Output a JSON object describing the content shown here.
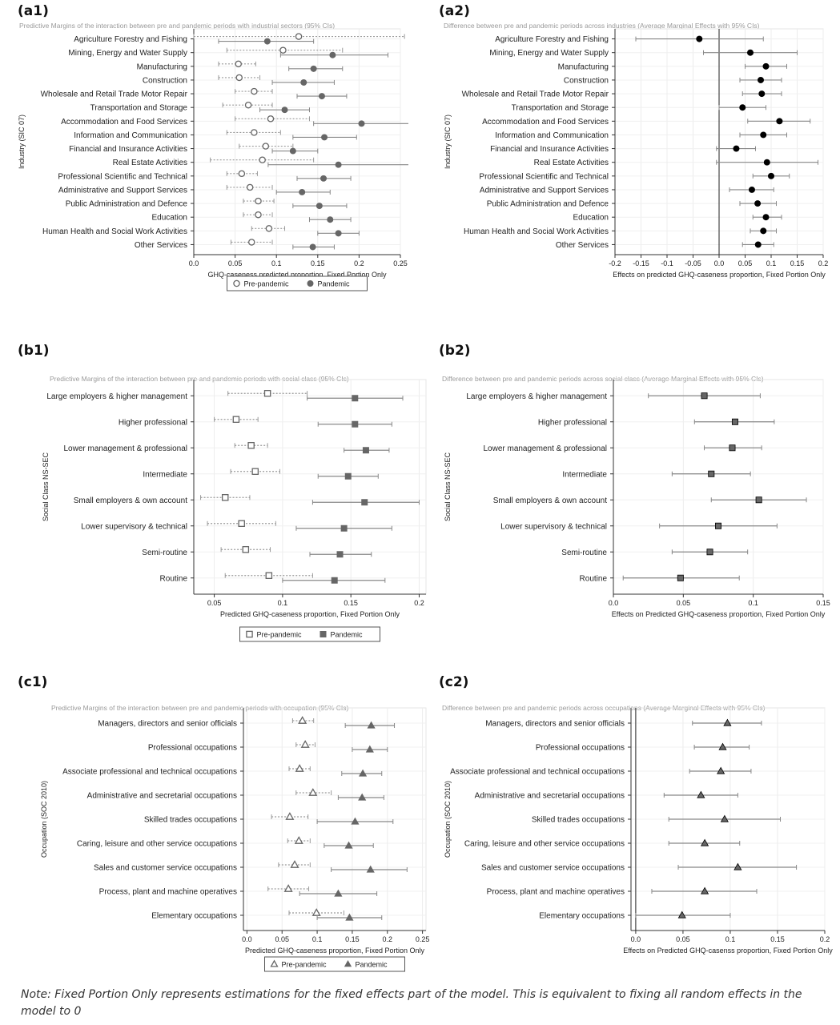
{
  "note": "Note: Fixed Portion Only represents estimations for the fixed effects part of the model. This is equivalent to fixing all random effects in the model to 0",
  "chart_data": [
    {
      "id": "a1",
      "label": "(a1)",
      "type": "dot-ci",
      "title": "Predictive Margins of the interaction between pre and pandemic periods with industrial sectors (95% CIs)",
      "ylabel": "Industry (SIC 07)",
      "xlabel": "GHQ-caseness predicted proportion, Fixed Portion Only",
      "xlim": [
        0,
        0.25
      ],
      "xticks": [
        0,
        0.05,
        0.1,
        0.15,
        0.2,
        0.25
      ],
      "xticklabels": [
        "0.0",
        "0.05",
        "0.1",
        "0.15",
        "0.2",
        "0.25"
      ],
      "marker": "circle",
      "categories": [
        "Agriculture Forestry and Fishing",
        "Mining, Energy and Water Supply",
        "Manufacturing",
        "Construction",
        "Wholesale and Retail Trade Motor Repair",
        "Transportation and Storage",
        "Accommodation and Food Services",
        "Information and Communication",
        "Financial and Insurance Activities",
        "Real Estate Activities",
        "Professional Scientific and Technical",
        "Administrative and Support Services",
        "Public Administration and Defence",
        "Education",
        "Human Health and Social Work Activities",
        "Other Services"
      ],
      "series": [
        {
          "name": "Pre-pandemic",
          "style": "hollow",
          "values": [
            0.127,
            0.108,
            0.054,
            0.055,
            0.073,
            0.066,
            0.093,
            0.073,
            0.087,
            0.083,
            0.058,
            0.068,
            0.078,
            0.078,
            0.091,
            0.07
          ],
          "lower": [
            0.0,
            0.04,
            0.03,
            0.03,
            0.05,
            0.035,
            0.05,
            0.04,
            0.055,
            0.02,
            0.04,
            0.04,
            0.06,
            0.06,
            0.07,
            0.045
          ],
          "upper": [
            0.255,
            0.18,
            0.075,
            0.08,
            0.095,
            0.095,
            0.14,
            0.105,
            0.12,
            0.145,
            0.077,
            0.095,
            0.097,
            0.095,
            0.11,
            0.095
          ]
        },
        {
          "name": "Pandemic",
          "style": "filled",
          "values": [
            0.089,
            0.168,
            0.145,
            0.133,
            0.155,
            0.11,
            0.203,
            0.158,
            0.12,
            0.175,
            0.157,
            0.131,
            0.152,
            0.165,
            0.175,
            0.144
          ],
          "lower": [
            0.03,
            0.105,
            0.115,
            0.095,
            0.125,
            0.08,
            0.145,
            0.12,
            0.095,
            0.09,
            0.125,
            0.1,
            0.12,
            0.14,
            0.15,
            0.12
          ],
          "upper": [
            0.145,
            0.235,
            0.18,
            0.17,
            0.185,
            0.14,
            0.262,
            0.197,
            0.15,
            0.262,
            0.19,
            0.165,
            0.185,
            0.19,
            0.2,
            0.17
          ]
        }
      ],
      "legend": [
        "Pre-pandemic",
        "Pandemic"
      ],
      "legend_position": "bottom"
    },
    {
      "id": "a2",
      "label": "(a2)",
      "type": "dot-ci",
      "title": "Difference between pre and pandemic periods across industries (Average Marginal Effects with 95% CIs)",
      "ylabel": "Industry (SIC 07)",
      "xlabel": "Effects on predicted GHQ-caseness proportion, Fixed Portion Only",
      "xlim": [
        -0.2,
        0.2
      ],
      "xticks": [
        -0.2,
        -0.15,
        -0.1,
        -0.05,
        0,
        0.05,
        0.1,
        0.15,
        0.2
      ],
      "xticklabels": [
        "-0.2",
        "-0.15",
        "-0.1",
        "-0.05",
        "0.0",
        "0.05",
        "0.1",
        "0.15",
        "0.2"
      ],
      "zero_line": 0,
      "marker": "circle",
      "categories": [
        "Agriculture Forestry and Fishing",
        "Mining, Energy and Water Supply",
        "Manufacturing",
        "Construction",
        "Wholesale and Retail Trade Motor Repair",
        "Transportation and Storage",
        "Accommodation and Food Services",
        "Information and Communication",
        "Financial and Insurance Activities",
        "Real Estate Activities",
        "Professional Scientific and Technical",
        "Administrative and Support Services",
        "Public Administration and Defence",
        "Education",
        "Human Health and Social Work Activities",
        "Other Services"
      ],
      "series": [
        {
          "name": "",
          "style": "filled",
          "values": [
            -0.038,
            0.06,
            0.09,
            0.08,
            0.082,
            0.045,
            0.116,
            0.085,
            0.033,
            0.092,
            0.1,
            0.063,
            0.074,
            0.09,
            0.085,
            0.075
          ],
          "lower": [
            -0.16,
            -0.03,
            0.05,
            0.04,
            0.045,
            0.0,
            0.055,
            0.04,
            -0.005,
            -0.005,
            0.065,
            0.02,
            0.04,
            0.065,
            0.06,
            0.045
          ],
          "upper": [
            0.085,
            0.15,
            0.13,
            0.12,
            0.12,
            0.09,
            0.175,
            0.13,
            0.07,
            0.19,
            0.135,
            0.105,
            0.11,
            0.12,
            0.11,
            0.105
          ]
        }
      ]
    },
    {
      "id": "b1",
      "label": "(b1)",
      "type": "dot-ci",
      "title": "Predictive Margins of the interaction between pre and pandemic periods with social class (95% CIs)",
      "ylabel": "Social Class NS-SEC",
      "xlabel": "Predicted GHQ-caseness proportion, Fixed Portion Only",
      "xlim": [
        0.035,
        0.205
      ],
      "xticks": [
        0.05,
        0.1,
        0.15,
        0.2
      ],
      "xticklabels": [
        "0.05",
        "0.1",
        "0.15",
        "0.2"
      ],
      "marker": "square",
      "categories": [
        "Large employers & higher management",
        "Higher professional",
        "Lower management & professional",
        "Intermediate",
        "Small employers & own account",
        "Lower supervisory & technical",
        "Semi-routine",
        "Routine"
      ],
      "series": [
        {
          "name": "Pre-pandemic",
          "style": "hollow",
          "values": [
            0.089,
            0.066,
            0.077,
            0.08,
            0.058,
            0.07,
            0.073,
            0.09
          ],
          "lower": [
            0.06,
            0.05,
            0.065,
            0.062,
            0.04,
            0.045,
            0.055,
            0.058
          ],
          "upper": [
            0.118,
            0.082,
            0.089,
            0.098,
            0.076,
            0.095,
            0.091,
            0.122
          ]
        },
        {
          "name": "Pandemic",
          "style": "filled",
          "values": [
            0.153,
            0.153,
            0.161,
            0.148,
            0.16,
            0.145,
            0.142,
            0.138
          ],
          "lower": [
            0.118,
            0.126,
            0.145,
            0.126,
            0.122,
            0.11,
            0.12,
            0.1
          ],
          "upper": [
            0.188,
            0.18,
            0.178,
            0.17,
            0.2,
            0.18,
            0.165,
            0.175
          ]
        }
      ],
      "legend": [
        "Pre-pandemic",
        "Pandemic"
      ],
      "legend_position": "bottom"
    },
    {
      "id": "b2",
      "label": "(b2)",
      "type": "dot-ci",
      "title": "Difference between pre and pandemic periods across social class (Average Marginal Effects with 95% CIs)",
      "ylabel": "Social Class NS-SEC",
      "xlabel": "Effects on Predicted GHQ-caseness proportion, Fixed Portion Only",
      "xlim": [
        0,
        0.15
      ],
      "xticks": [
        0,
        0.05,
        0.1,
        0.15
      ],
      "xticklabels": [
        "0.0",
        "0.05",
        "0.1",
        "0.15"
      ],
      "marker": "square",
      "categories": [
        "Large employers & higher management",
        "Higher professional",
        "Lower management & professional",
        "Intermediate",
        "Small employers & own account",
        "Lower supervisory & technical",
        "Semi-routine",
        "Routine"
      ],
      "series": [
        {
          "name": "",
          "style": "filled",
          "values": [
            0.065,
            0.087,
            0.085,
            0.07,
            0.104,
            0.075,
            0.069,
            0.048
          ],
          "lower": [
            0.025,
            0.058,
            0.065,
            0.042,
            0.07,
            0.033,
            0.042,
            0.007
          ],
          "upper": [
            0.105,
            0.115,
            0.106,
            0.098,
            0.138,
            0.117,
            0.096,
            0.09
          ]
        }
      ]
    },
    {
      "id": "c1",
      "label": "(c1)",
      "type": "dot-ci",
      "title": "Predictive Margins of the interaction between pre and pandemic periods with occupation (95% CIs)",
      "ylabel": "Occupation (SOC 2010)",
      "xlabel": "Predicted GHQ-caseness proportion, Fixed Portion Only",
      "xlim": [
        -0.005,
        0.255
      ],
      "xticks": [
        0,
        0.05,
        0.1,
        0.15,
        0.2,
        0.25
      ],
      "xticklabels": [
        "0.0",
        "0.05",
        "0.1",
        "0.15",
        "0.2",
        "0.25"
      ],
      "marker": "triangle",
      "categories": [
        "Managers, directors and senior officials",
        "Professional occupations",
        "Associate professional and technical occupations",
        "Administrative and secretarial occupations",
        "Skilled trades occupations",
        "Caring, leisure and other service occupations",
        "Sales and customer service occupations",
        "Process, plant and machine operatives",
        "Elementary occupations"
      ],
      "series": [
        {
          "name": "Pre-pandemic",
          "style": "hollow",
          "values": [
            0.079,
            0.083,
            0.075,
            0.094,
            0.061,
            0.074,
            0.068,
            0.059,
            0.099
          ],
          "lower": [
            0.065,
            0.07,
            0.06,
            0.07,
            0.035,
            0.058,
            0.045,
            0.03,
            0.06
          ],
          "upper": [
            0.095,
            0.097,
            0.09,
            0.12,
            0.087,
            0.09,
            0.09,
            0.088,
            0.138
          ]
        },
        {
          "name": "Pandemic",
          "style": "filled",
          "values": [
            0.177,
            0.175,
            0.165,
            0.164,
            0.154,
            0.145,
            0.176,
            0.13,
            0.146
          ],
          "lower": [
            0.14,
            0.15,
            0.135,
            0.13,
            0.1,
            0.11,
            0.12,
            0.075,
            0.1
          ],
          "upper": [
            0.21,
            0.2,
            0.192,
            0.195,
            0.208,
            0.18,
            0.228,
            0.185,
            0.192
          ]
        }
      ],
      "legend": [
        "Pre-pandemic",
        "Pandemic"
      ],
      "legend_position": "bottom"
    },
    {
      "id": "c2",
      "label": "(c2)",
      "type": "dot-ci",
      "title": "Difference between pre and pandemic periods across occupations (Average Marginal Effects with 95% CIs)",
      "ylabel": "Occupation (SOC 2010)",
      "xlabel": "Effects on Predicted GHQ-casenss proportion, Fixed Portion Only",
      "xlim": [
        -0.005,
        0.2
      ],
      "xticks": [
        0,
        0.05,
        0.1,
        0.15,
        0.2
      ],
      "xticklabels": [
        "0.0",
        "0.05",
        "0.1",
        "0.15",
        "0.2"
      ],
      "zero_line": 0,
      "marker": "triangle",
      "categories": [
        "Managers, directors and senior officials",
        "Professional occupations",
        "Associate professional and technical occupations",
        "Administrative and secretarial occupations",
        "Skilled trades occupations",
        "Caring, leisure and other service occupations",
        "Sales and customer service occupations",
        "Process, plant and machine operatives",
        "Elementary occupations"
      ],
      "series": [
        {
          "name": "",
          "style": "filled",
          "values": [
            0.097,
            0.092,
            0.09,
            0.069,
            0.094,
            0.073,
            0.108,
            0.073,
            0.049
          ],
          "lower": [
            0.06,
            0.062,
            0.057,
            0.03,
            0.035,
            0.035,
            0.045,
            0.017,
            0.0
          ],
          "upper": [
            0.133,
            0.12,
            0.122,
            0.108,
            0.153,
            0.11,
            0.17,
            0.128,
            0.1
          ]
        }
      ]
    }
  ]
}
